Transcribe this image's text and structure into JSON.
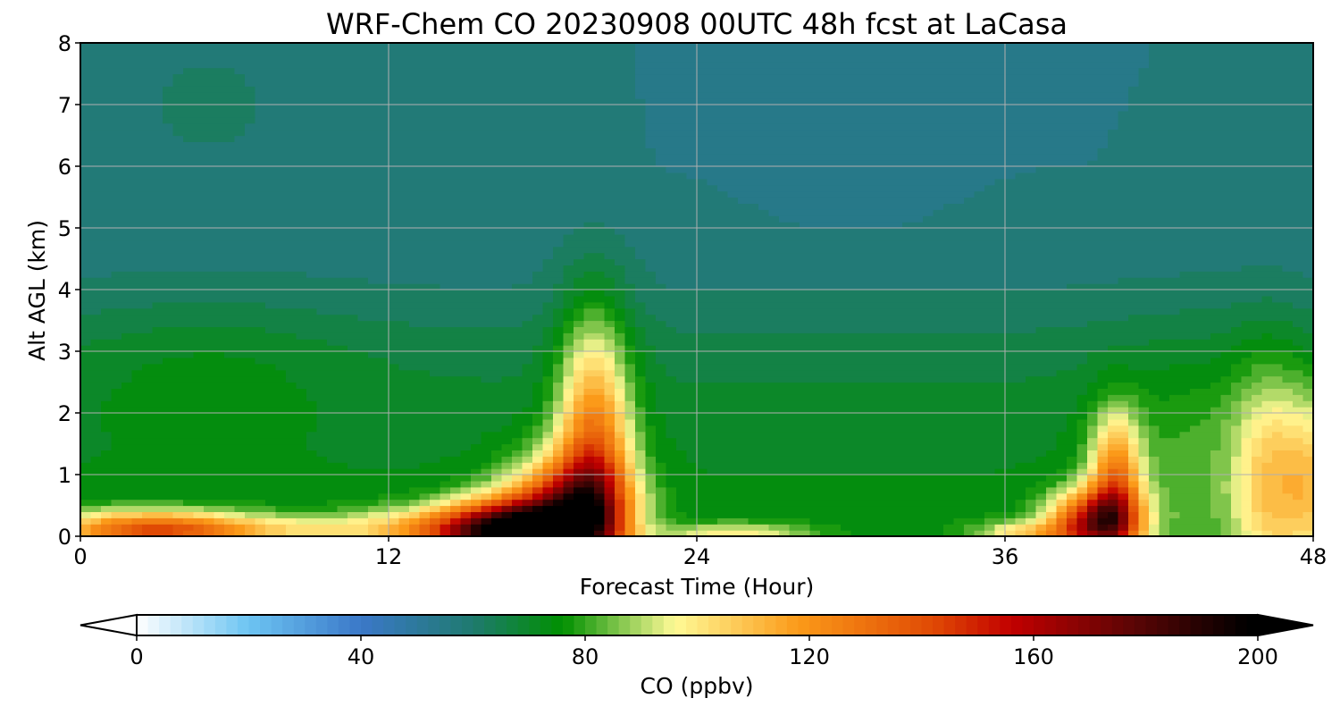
{
  "chart_data": {
    "type": "heatmap",
    "title": "WRF-Chem CO  20230908 00UTC 48h fcst at LaCasa",
    "xlabel": "Forecast Time (Hour)",
    "ylabel": "Alt AGL (km)",
    "xlim": [
      0,
      48
    ],
    "ylim": [
      0,
      8
    ],
    "xticks": [
      0,
      12,
      24,
      36,
      48
    ],
    "yticks": [
      0,
      1,
      2,
      3,
      4,
      5,
      6,
      7,
      8
    ],
    "grid": true,
    "colorbar": {
      "label": "CO  (ppbv)",
      "range": [
        0,
        200
      ],
      "ticks": [
        0,
        40,
        80,
        120,
        160,
        200
      ],
      "orientation": "horizontal",
      "placement": "bottom",
      "extend": "both",
      "stops": [
        {
          "v": 0,
          "c": "#ffffff"
        },
        {
          "v": 20,
          "c": "#6cc4f2"
        },
        {
          "v": 40,
          "c": "#3b78c8"
        },
        {
          "v": 60,
          "c": "#1f7a6e"
        },
        {
          "v": 76,
          "c": "#009000"
        },
        {
          "v": 96,
          "c": "#fffa96"
        },
        {
          "v": 118,
          "c": "#fb9a19"
        },
        {
          "v": 142,
          "c": "#e04a04"
        },
        {
          "v": 156,
          "c": "#c20000"
        },
        {
          "v": 178,
          "c": "#5a0505"
        },
        {
          "v": 198,
          "c": "#000000"
        }
      ]
    },
    "field": {
      "description_units": "ppbv",
      "background_profile": [
        {
          "z": 0.3,
          "v": 74
        },
        {
          "z": 1.0,
          "v": 72
        },
        {
          "z": 2.0,
          "v": 70
        },
        {
          "z": 3.0,
          "v": 66
        },
        {
          "z": 4.0,
          "v": 60
        },
        {
          "z": 5.0,
          "v": 57
        },
        {
          "z": 6.0,
          "v": 56
        },
        {
          "z": 8.0,
          "v": 56
        }
      ],
      "features": [
        {
          "t": 20,
          "z": 1.2,
          "st": 1.0,
          "sz": 1.6,
          "amp": 60
        },
        {
          "t": 19,
          "z": 0.4,
          "st": 1.6,
          "sz": 0.6,
          "amp": 80
        },
        {
          "t": 16.7,
          "z": 0.1,
          "st": 1.8,
          "sz": 0.35,
          "amp": 100
        },
        {
          "t": 14,
          "z": 0.1,
          "st": 2.5,
          "sz": 0.25,
          "amp": 40
        },
        {
          "t": 2.5,
          "z": 0.1,
          "st": 2.5,
          "sz": 0.22,
          "amp": 60
        },
        {
          "t": 7,
          "z": 0.1,
          "st": 3.0,
          "sz": 0.18,
          "amp": 25
        },
        {
          "t": 25.5,
          "z": 0.05,
          "st": 2.0,
          "sz": 0.12,
          "amp": 25
        },
        {
          "t": 40.3,
          "z": 0.8,
          "st": 0.7,
          "sz": 0.8,
          "amp": 55
        },
        {
          "t": 39.5,
          "z": 0.25,
          "st": 1.2,
          "sz": 0.35,
          "amp": 80
        },
        {
          "t": 37,
          "z": 0.05,
          "st": 1.5,
          "sz": 0.15,
          "amp": 30
        },
        {
          "t": 46.3,
          "z": 0.9,
          "st": 1.0,
          "sz": 1.3,
          "amp": 30
        },
        {
          "t": 48,
          "z": 0.9,
          "st": 0.8,
          "sz": 1.0,
          "amp": 28
        },
        {
          "t": 43.5,
          "z": 1.3,
          "st": 2.5,
          "sz": 1.3,
          "amp": 10
        },
        {
          "t": 30,
          "z": 6.4,
          "st": 2.5,
          "sz": 0.9,
          "amp": -4
        },
        {
          "t": 5,
          "z": 2.8,
          "st": 4.0,
          "sz": 0.8,
          "amp": 6
        },
        {
          "t": 5,
          "z": 7.0,
          "st": 2.0,
          "sz": 0.7,
          "amp": 6
        }
      ]
    }
  }
}
